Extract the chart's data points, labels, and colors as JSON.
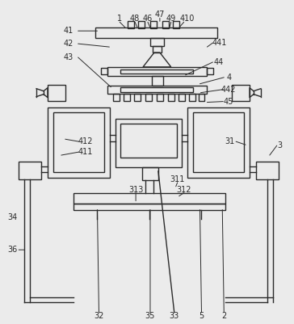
{
  "bg_color": "#ebebeb",
  "line_color": "#2a2a2a",
  "lw": 1.0,
  "fig_w": 3.64,
  "fig_h": 4.01,
  "dpi": 100
}
